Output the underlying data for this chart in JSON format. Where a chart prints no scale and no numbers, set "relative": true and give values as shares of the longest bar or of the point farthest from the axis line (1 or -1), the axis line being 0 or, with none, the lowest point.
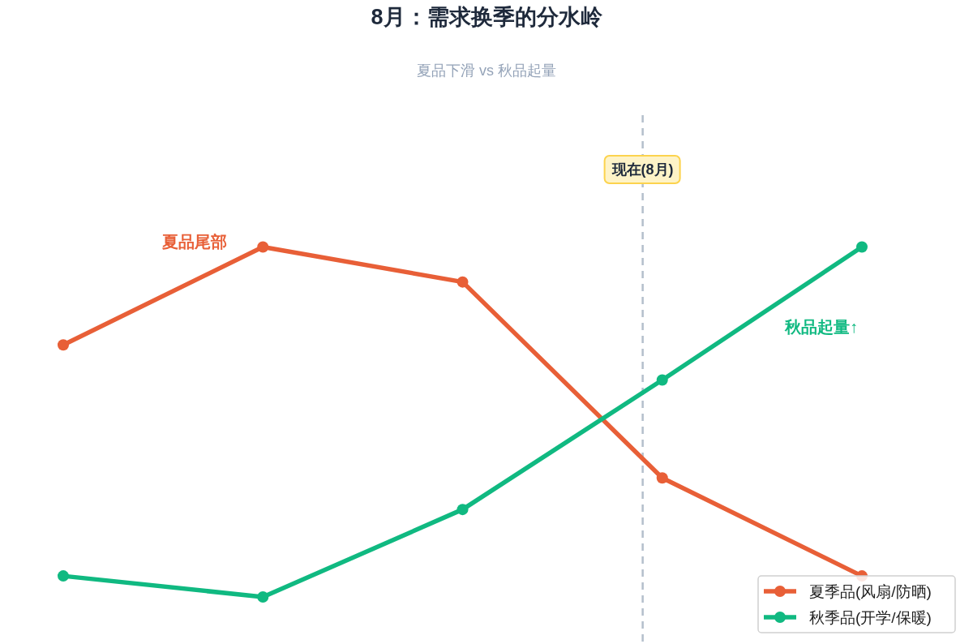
{
  "chart_data": {
    "type": "line",
    "title": "8月：需求换季的分水岭",
    "subtitle": "夏品下滑 vs 秋品起量",
    "categories": [
      null,
      null,
      null,
      null,
      null
    ],
    "relative": true,
    "series": [
      {
        "name": "夏季品(风扇/防晒)",
        "color": "#e85f37",
        "values": [
          0.72,
          1.0,
          0.9,
          0.34,
          0.06
        ]
      },
      {
        "name": "秋季品(开学/保暖)",
        "color": "#10b981",
        "values": [
          0.06,
          0.0,
          0.25,
          0.62,
          1.0
        ]
      }
    ],
    "annotations": [
      "现在(8月)",
      "夏品尾部",
      "秋品起量↑"
    ],
    "marker": "circle",
    "line_style": "solid",
    "legend": "bottom right"
  }
}
